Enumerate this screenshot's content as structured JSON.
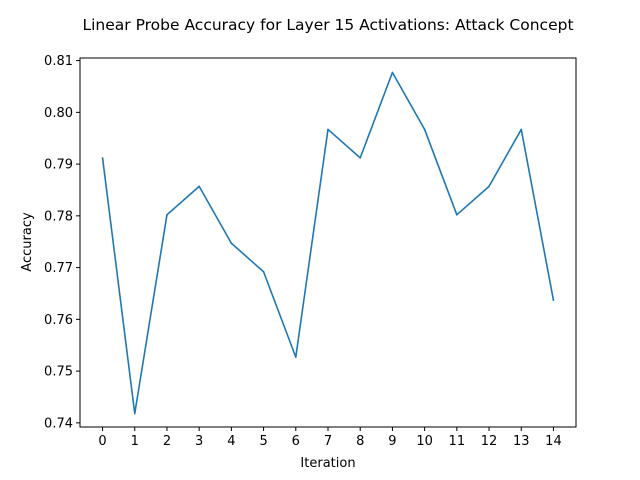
{
  "chart_data": {
    "type": "line",
    "title": "Linear Probe Accuracy for Layer 15 Activations: Attack Concept",
    "xlabel": "Iteration",
    "ylabel": "Accuracy",
    "x": [
      0,
      1,
      2,
      3,
      4,
      5,
      6,
      7,
      8,
      9,
      10,
      11,
      12,
      13,
      14
    ],
    "x_ticks": [
      "0",
      "1",
      "2",
      "3",
      "4",
      "5",
      "6",
      "7",
      "8",
      "9",
      "10",
      "11",
      "12",
      "13",
      "14"
    ],
    "y_ticks": [
      "0.74",
      "0.75",
      "0.76",
      "0.77",
      "0.78",
      "0.79",
      "0.80",
      "0.81"
    ],
    "xlim": [
      -0.7,
      14.7
    ],
    "ylim": [
      0.7392,
      0.8105
    ],
    "grid": false,
    "series": [
      {
        "color": "#1f77b4",
        "values": [
          0.7912,
          0.7418,
          0.7802,
          0.7857,
          0.7747,
          0.7692,
          0.7527,
          0.7967,
          0.7912,
          0.8077,
          0.7967,
          0.7802,
          0.7857,
          0.7967,
          0.7637
        ]
      }
    ]
  }
}
